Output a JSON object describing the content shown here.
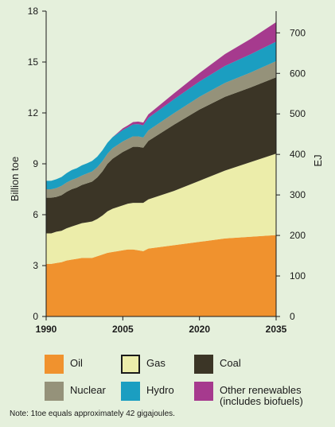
{
  "chart_data": {
    "type": "area",
    "stacked": true,
    "x": [
      1990,
      1991,
      1992,
      1993,
      1994,
      1995,
      1996,
      1997,
      1998,
      1999,
      2000,
      2001,
      2002,
      2003,
      2004,
      2005,
      2006,
      2007,
      2008,
      2009,
      2010,
      2015,
      2020,
      2025,
      2030,
      2035
    ],
    "series": [
      {
        "name": "Oil",
        "color": "#f0922e",
        "values": [
          3.1,
          3.1,
          3.15,
          3.2,
          3.3,
          3.35,
          3.4,
          3.45,
          3.45,
          3.45,
          3.55,
          3.65,
          3.75,
          3.8,
          3.85,
          3.9,
          3.95,
          3.95,
          3.9,
          3.85,
          4.0,
          4.2,
          4.4,
          4.6,
          4.7,
          4.8
        ]
      },
      {
        "name": "Gas",
        "color": "#ecedaa",
        "values": [
          1.8,
          1.8,
          1.85,
          1.85,
          1.9,
          1.95,
          2.0,
          2.05,
          2.1,
          2.15,
          2.2,
          2.3,
          2.45,
          2.55,
          2.6,
          2.65,
          2.7,
          2.75,
          2.8,
          2.85,
          2.9,
          3.2,
          3.6,
          4.0,
          4.4,
          4.8
        ]
      },
      {
        "name": "Coal",
        "color": "#3b3526",
        "values": [
          2.1,
          2.1,
          2.05,
          2.1,
          2.15,
          2.2,
          2.2,
          2.25,
          2.3,
          2.35,
          2.45,
          2.6,
          2.8,
          2.95,
          3.05,
          3.15,
          3.2,
          3.3,
          3.3,
          3.25,
          3.45,
          3.9,
          4.2,
          4.35,
          4.4,
          4.5
        ]
      },
      {
        "name": "Nuclear",
        "color": "#95927a",
        "values": [
          0.5,
          0.5,
          0.52,
          0.55,
          0.55,
          0.55,
          0.56,
          0.56,
          0.58,
          0.6,
          0.6,
          0.6,
          0.6,
          0.62,
          0.62,
          0.62,
          0.62,
          0.62,
          0.62,
          0.6,
          0.62,
          0.68,
          0.75,
          0.82,
          0.88,
          0.95
        ]
      },
      {
        "name": "Hydro",
        "color": "#1b9ec1",
        "values": [
          0.5,
          0.5,
          0.52,
          0.52,
          0.55,
          0.58,
          0.58,
          0.6,
          0.6,
          0.62,
          0.62,
          0.64,
          0.64,
          0.65,
          0.66,
          0.67,
          0.68,
          0.7,
          0.72,
          0.72,
          0.74,
          0.82,
          0.9,
          1.0,
          1.08,
          1.15
        ]
      },
      {
        "name": "Other renewables\n(includes biofuels)",
        "color": "#a63a8e",
        "values": [
          0.0,
          0.0,
          0.0,
          0.0,
          0.0,
          0.0,
          0.0,
          0.0,
          0.0,
          0.0,
          0.0,
          0.0,
          0.0,
          0.0,
          0.05,
          0.1,
          0.12,
          0.14,
          0.15,
          0.16,
          0.2,
          0.35,
          0.5,
          0.7,
          0.9,
          1.15
        ]
      }
    ],
    "xticks": [
      "1990",
      "2005",
      "2020",
      "2035"
    ],
    "yticks_left": [
      "0",
      "3",
      "6",
      "9",
      "12",
      "15",
      "18"
    ],
    "yticks_right": [
      "0",
      "100",
      "200",
      "300",
      "400",
      "500",
      "600",
      "700"
    ],
    "ylabel": "Billion toe",
    "ylabel_right": "EJ",
    "xlim": [
      1990,
      2035
    ],
    "ylim": [
      0,
      18
    ],
    "ylim_right": [
      0,
      753.6
    ],
    "grid": false,
    "legend_position": "bottom"
  },
  "note": "Note: 1toe equals approximately 42 gigajoules."
}
